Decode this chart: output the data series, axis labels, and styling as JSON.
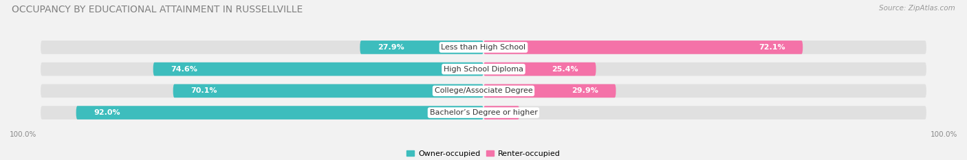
{
  "title": "OCCUPANCY BY EDUCATIONAL ATTAINMENT IN RUSSELLVILLE",
  "source": "Source: ZipAtlas.com",
  "categories": [
    "Less than High School",
    "High School Diploma",
    "College/Associate Degree",
    "Bachelor’s Degree or higher"
  ],
  "owner_values": [
    27.9,
    74.6,
    70.1,
    92.0
  ],
  "renter_values": [
    72.1,
    25.4,
    29.9,
    8.1
  ],
  "owner_color": "#3dbdbd",
  "renter_color": "#f472a8",
  "bg_color": "#f2f2f2",
  "bar_bg_color": "#e0e0e0",
  "title_color": "#808080",
  "title_fontsize": 10,
  "label_fontsize": 8,
  "source_fontsize": 7.5,
  "legend_label_owner": "Owner-occupied",
  "legend_label_renter": "Renter-occupied",
  "x_left_label": "100.0%",
  "x_right_label": "100.0%",
  "bar_height": 0.62,
  "total_width": 100
}
